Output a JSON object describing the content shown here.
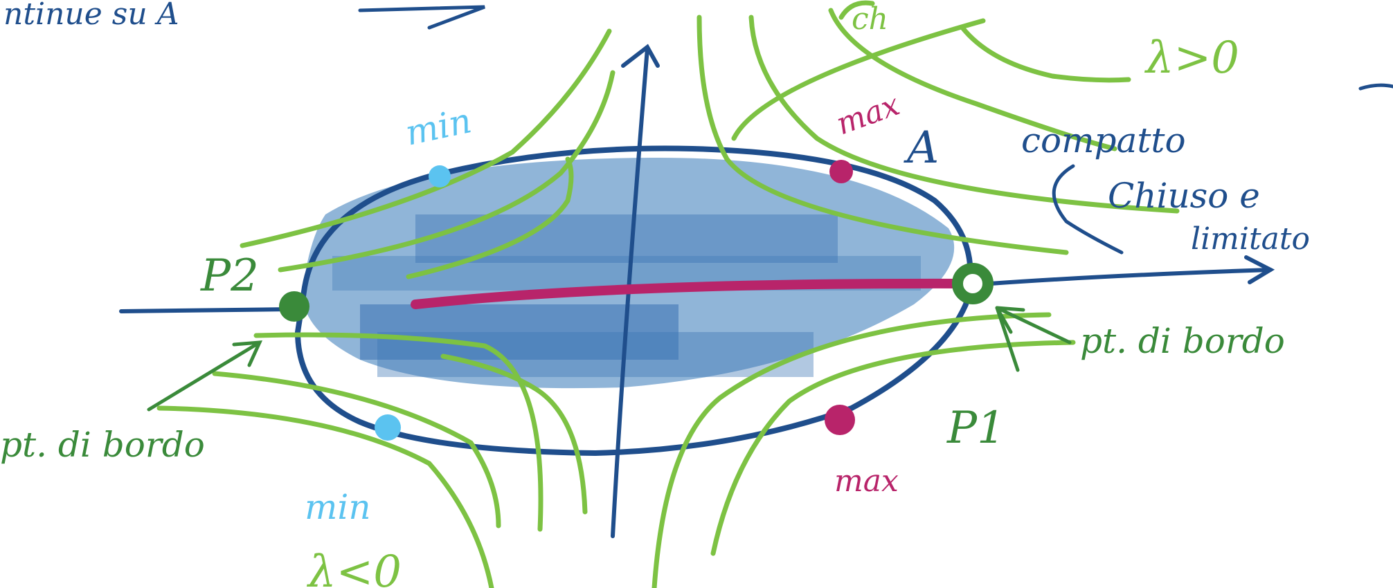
{
  "colors": {
    "ink_blue": "#1f4e8c",
    "region_fill": "#6b9ccb",
    "region_dark": "#3d75b5",
    "level_green": "#7dc243",
    "point_green": "#3a8a3a",
    "max_magenta": "#b8246a",
    "min_cyan": "#5bc3f0"
  },
  "text": {
    "top_line": "ntinue su A",
    "top_fragment_right": "ch",
    "top_fragment_far_right": "—",
    "lambda_pos": "λ>0",
    "lambda_neg": "λ<0",
    "set_label": "A",
    "compatto": "compatto",
    "chiuso": "Chiuso e",
    "limitato": "limitato",
    "max_top": "max",
    "max_bottom": "max",
    "min_top": "min",
    "min_bottom": "min",
    "p1": "P1",
    "p2": "P2",
    "bordo_right": "pt. di bordo",
    "bordo_left": "pt. di bordo"
  }
}
